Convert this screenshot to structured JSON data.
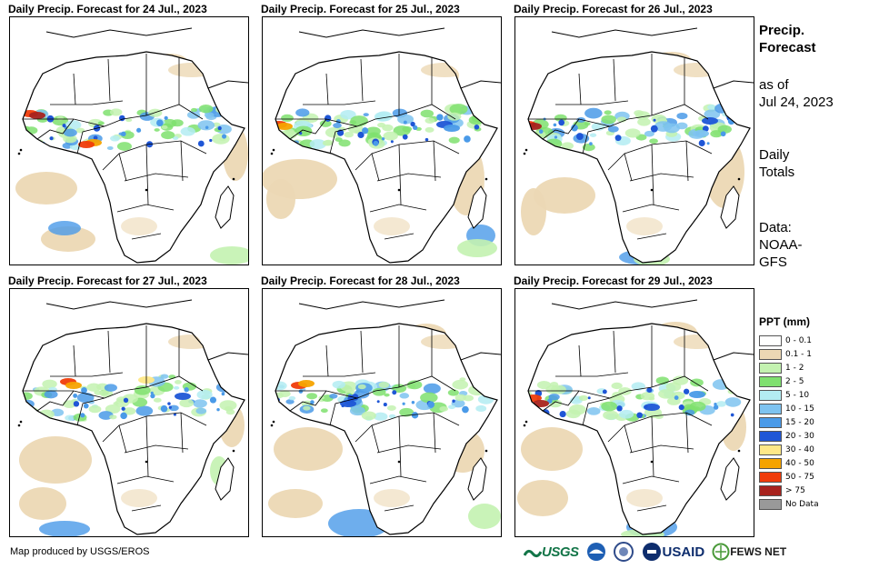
{
  "panels": [
    {
      "title": "Daily Precip. Forecast for 24 Jul., 2023",
      "variant": 0
    },
    {
      "title": "Daily Precip. Forecast for 25 Jul., 2023",
      "variant": 1
    },
    {
      "title": "Daily Precip. Forecast for 26 Jul., 2023",
      "variant": 2
    },
    {
      "title": "Daily Precip. Forecast for 27 Jul., 2023",
      "variant": 3
    },
    {
      "title": "Daily Precip. Forecast for 28 Jul., 2023",
      "variant": 4
    },
    {
      "title": "Daily Precip. Forecast for 29 Jul., 2023",
      "variant": 5
    }
  ],
  "sidebar": {
    "title_line1": "Precip.",
    "title_line2": "Forecast",
    "asof_line1": "as of",
    "asof_line2": "Jul 24, 2023",
    "totals_line1": "Daily",
    "totals_line2": "Totals",
    "data_line1": "Data:",
    "data_line2": "NOAA-",
    "data_line3": "GFS"
  },
  "legend": {
    "title": "PPT (mm)",
    "items": [
      {
        "label": "0 - 0.1",
        "color": "#ffffff"
      },
      {
        "label": "0.1 - 1",
        "color": "#ecd8b4"
      },
      {
        "label": "1 - 2",
        "color": "#c3f2b0"
      },
      {
        "label": "2 - 5",
        "color": "#7fe06f"
      },
      {
        "label": "5 - 10",
        "color": "#b3ecf2"
      },
      {
        "label": "10 - 15",
        "color": "#7ec3f0"
      },
      {
        "label": "15 - 20",
        "color": "#4a9ae8"
      },
      {
        "label": "20 - 30",
        "color": "#1f56d6"
      },
      {
        "label": "30 - 40",
        "color": "#ffe887"
      },
      {
        "label": "40 - 50",
        "color": "#f5a300"
      },
      {
        "label": "50 - 75",
        "color": "#f03c0a"
      },
      {
        "label": "> 75",
        "color": "#a8231e"
      },
      {
        "label": "No Data",
        "color": "#999999"
      }
    ]
  },
  "credit": "Map produced by USGS/EROS",
  "logos": {
    "usgs": "USGS",
    "usaid": "USAID",
    "fews": "FEWS NET"
  }
}
